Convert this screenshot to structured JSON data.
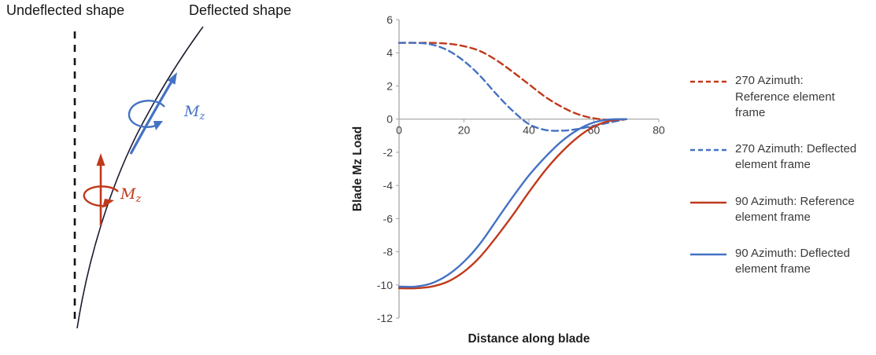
{
  "diagram": {
    "undeflected_label": "Undeflected shape",
    "deflected_label": "Deflected shape",
    "moment_label_base": "M",
    "moment_label_sub": "z",
    "red_color": "#c0391b",
    "blue_color": "#4472c4",
    "curve_color": "#1c1c30"
  },
  "chart_data": {
    "type": "line",
    "title": "",
    "xlabel": "Distance along blade",
    "ylabel": "Blade Mz Load",
    "xlim": [
      0,
      80
    ],
    "ylim": [
      -12,
      6
    ],
    "xticks": [
      0,
      20,
      40,
      60,
      80
    ],
    "yticks": [
      -12,
      -10,
      -8,
      -6,
      -4,
      -2,
      0,
      2,
      4,
      6
    ],
    "grid": false,
    "legend_position": "right",
    "x": [
      0,
      5,
      10,
      15,
      20,
      25,
      30,
      35,
      40,
      45,
      50,
      55,
      60,
      65,
      70
    ],
    "series": [
      {
        "name": "270 Azimuth: Reference element frame",
        "color": "#c0391b",
        "dash": true,
        "values": [
          4.6,
          4.6,
          4.6,
          4.55,
          4.4,
          4.1,
          3.55,
          2.85,
          2.1,
          1.35,
          0.75,
          0.3,
          0.05,
          -0.05,
          0.0
        ]
      },
      {
        "name": "270 Azimuth: Deflected element frame",
        "color": "#4472c4",
        "dash": true,
        "values": [
          4.6,
          4.6,
          4.5,
          4.15,
          3.5,
          2.6,
          1.5,
          0.5,
          -0.3,
          -0.65,
          -0.7,
          -0.6,
          -0.4,
          -0.2,
          0.0
        ]
      },
      {
        "name": "90 Azimuth: Reference element frame",
        "color": "#c0391b",
        "dash": false,
        "values": [
          -10.2,
          -10.2,
          -10.1,
          -9.8,
          -9.2,
          -8.3,
          -7.1,
          -5.8,
          -4.4,
          -3.1,
          -2.0,
          -1.1,
          -0.45,
          -0.1,
          0.0
        ]
      },
      {
        "name": "90 Azimuth: Deflected element frame",
        "color": "#4472c4",
        "dash": false,
        "values": [
          -10.1,
          -10.1,
          -9.9,
          -9.4,
          -8.6,
          -7.5,
          -6.1,
          -4.7,
          -3.4,
          -2.3,
          -1.35,
          -0.65,
          -0.2,
          -0.02,
          0.0
        ]
      }
    ]
  }
}
